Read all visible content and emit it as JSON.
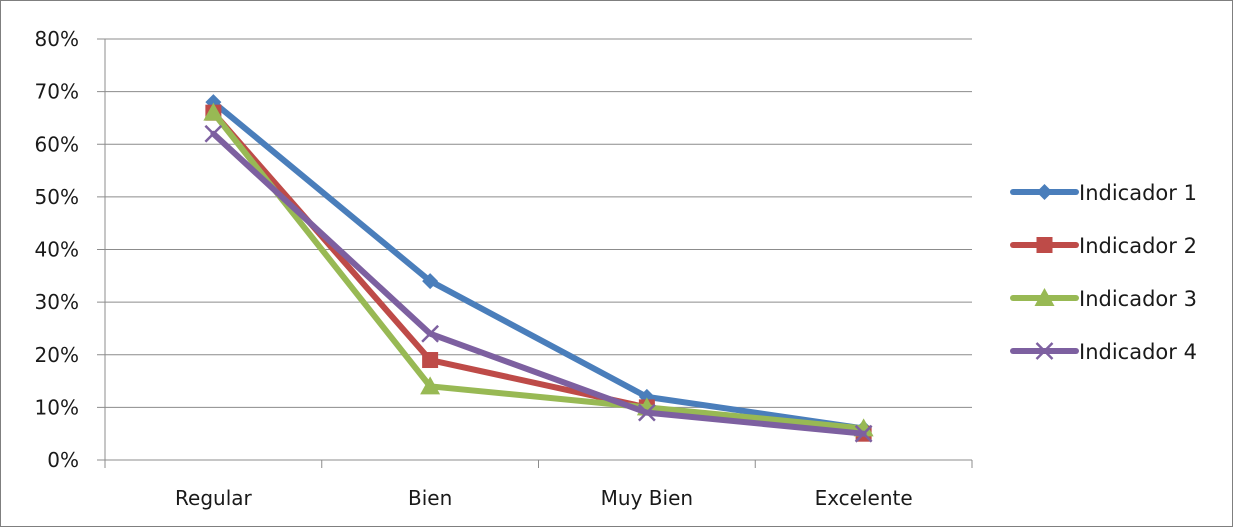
{
  "chart_data": {
    "type": "line",
    "title": "",
    "xlabel": "",
    "ylabel": "",
    "categories": [
      "Regular",
      "Bien",
      "Muy Bien",
      "Excelente"
    ],
    "y_ticks": [
      "0%",
      "10%",
      "20%",
      "30%",
      "40%",
      "50%",
      "60%",
      "70%",
      "80%"
    ],
    "ylim": [
      0,
      80
    ],
    "grid": true,
    "legend_position": "right",
    "series": [
      {
        "name": "Indicador 1",
        "values": [
          68,
          34,
          12,
          6
        ],
        "color": "#4a7ebb",
        "marker": "diamond"
      },
      {
        "name": "Indicador 2",
        "values": [
          66,
          19,
          10,
          5
        ],
        "color": "#be4b48",
        "marker": "square"
      },
      {
        "name": "Indicador 3",
        "values": [
          66,
          14,
          10,
          6
        ],
        "color": "#98b954",
        "marker": "triangle"
      },
      {
        "name": "Indicador 4",
        "values": [
          62,
          24,
          9,
          5
        ],
        "color": "#7d60a0",
        "marker": "x"
      }
    ]
  }
}
